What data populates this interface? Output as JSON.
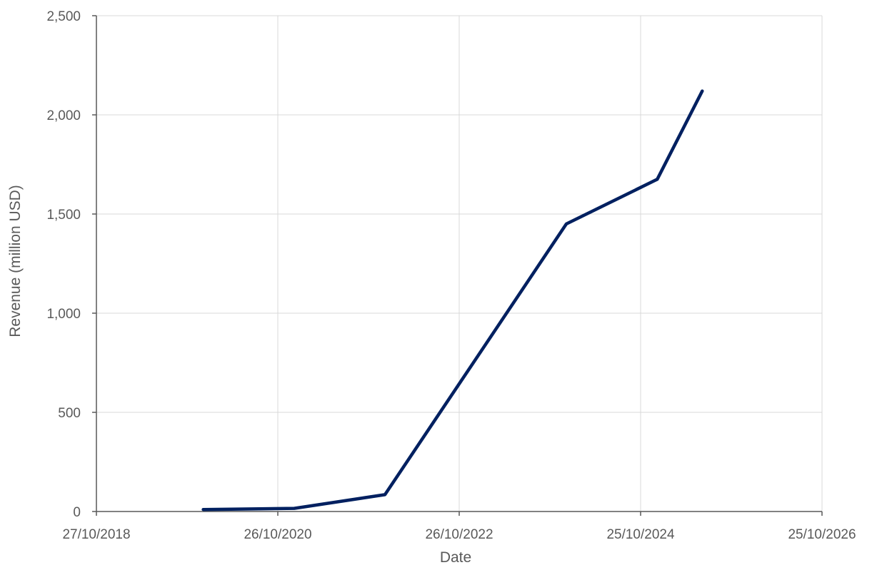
{
  "chart_data": {
    "type": "line",
    "title": "",
    "xlabel": "Date",
    "ylabel": "Revenue (million USD)",
    "x_axis_type": "date",
    "xlim": [
      "2018-10-27",
      "2026-10-25"
    ],
    "ylim": [
      0,
      2500
    ],
    "x_ticks": [
      "2018-10-27",
      "2020-10-26",
      "2022-10-26",
      "2024-10-25",
      "2026-10-25"
    ],
    "x_tick_labels": [
      "27/10/2018",
      "26/10/2020",
      "26/10/2022",
      "25/10/2024",
      "25/10/2026"
    ],
    "y_ticks": [
      0,
      500,
      1000,
      1500,
      2000,
      2500
    ],
    "y_tick_labels": [
      "0",
      "500",
      "1,000",
      "1,500",
      "2,000",
      "2,500"
    ],
    "grid": true,
    "legend": "none",
    "series": [
      {
        "color": "#002060",
        "x": [
          "2019-12-31",
          "2020-12-31",
          "2021-12-31",
          "2023-12-31",
          "2024-12-31",
          "2025-06-30"
        ],
        "y": [
          10,
          16,
          85,
          1450,
          1675,
          2120
        ]
      }
    ]
  }
}
